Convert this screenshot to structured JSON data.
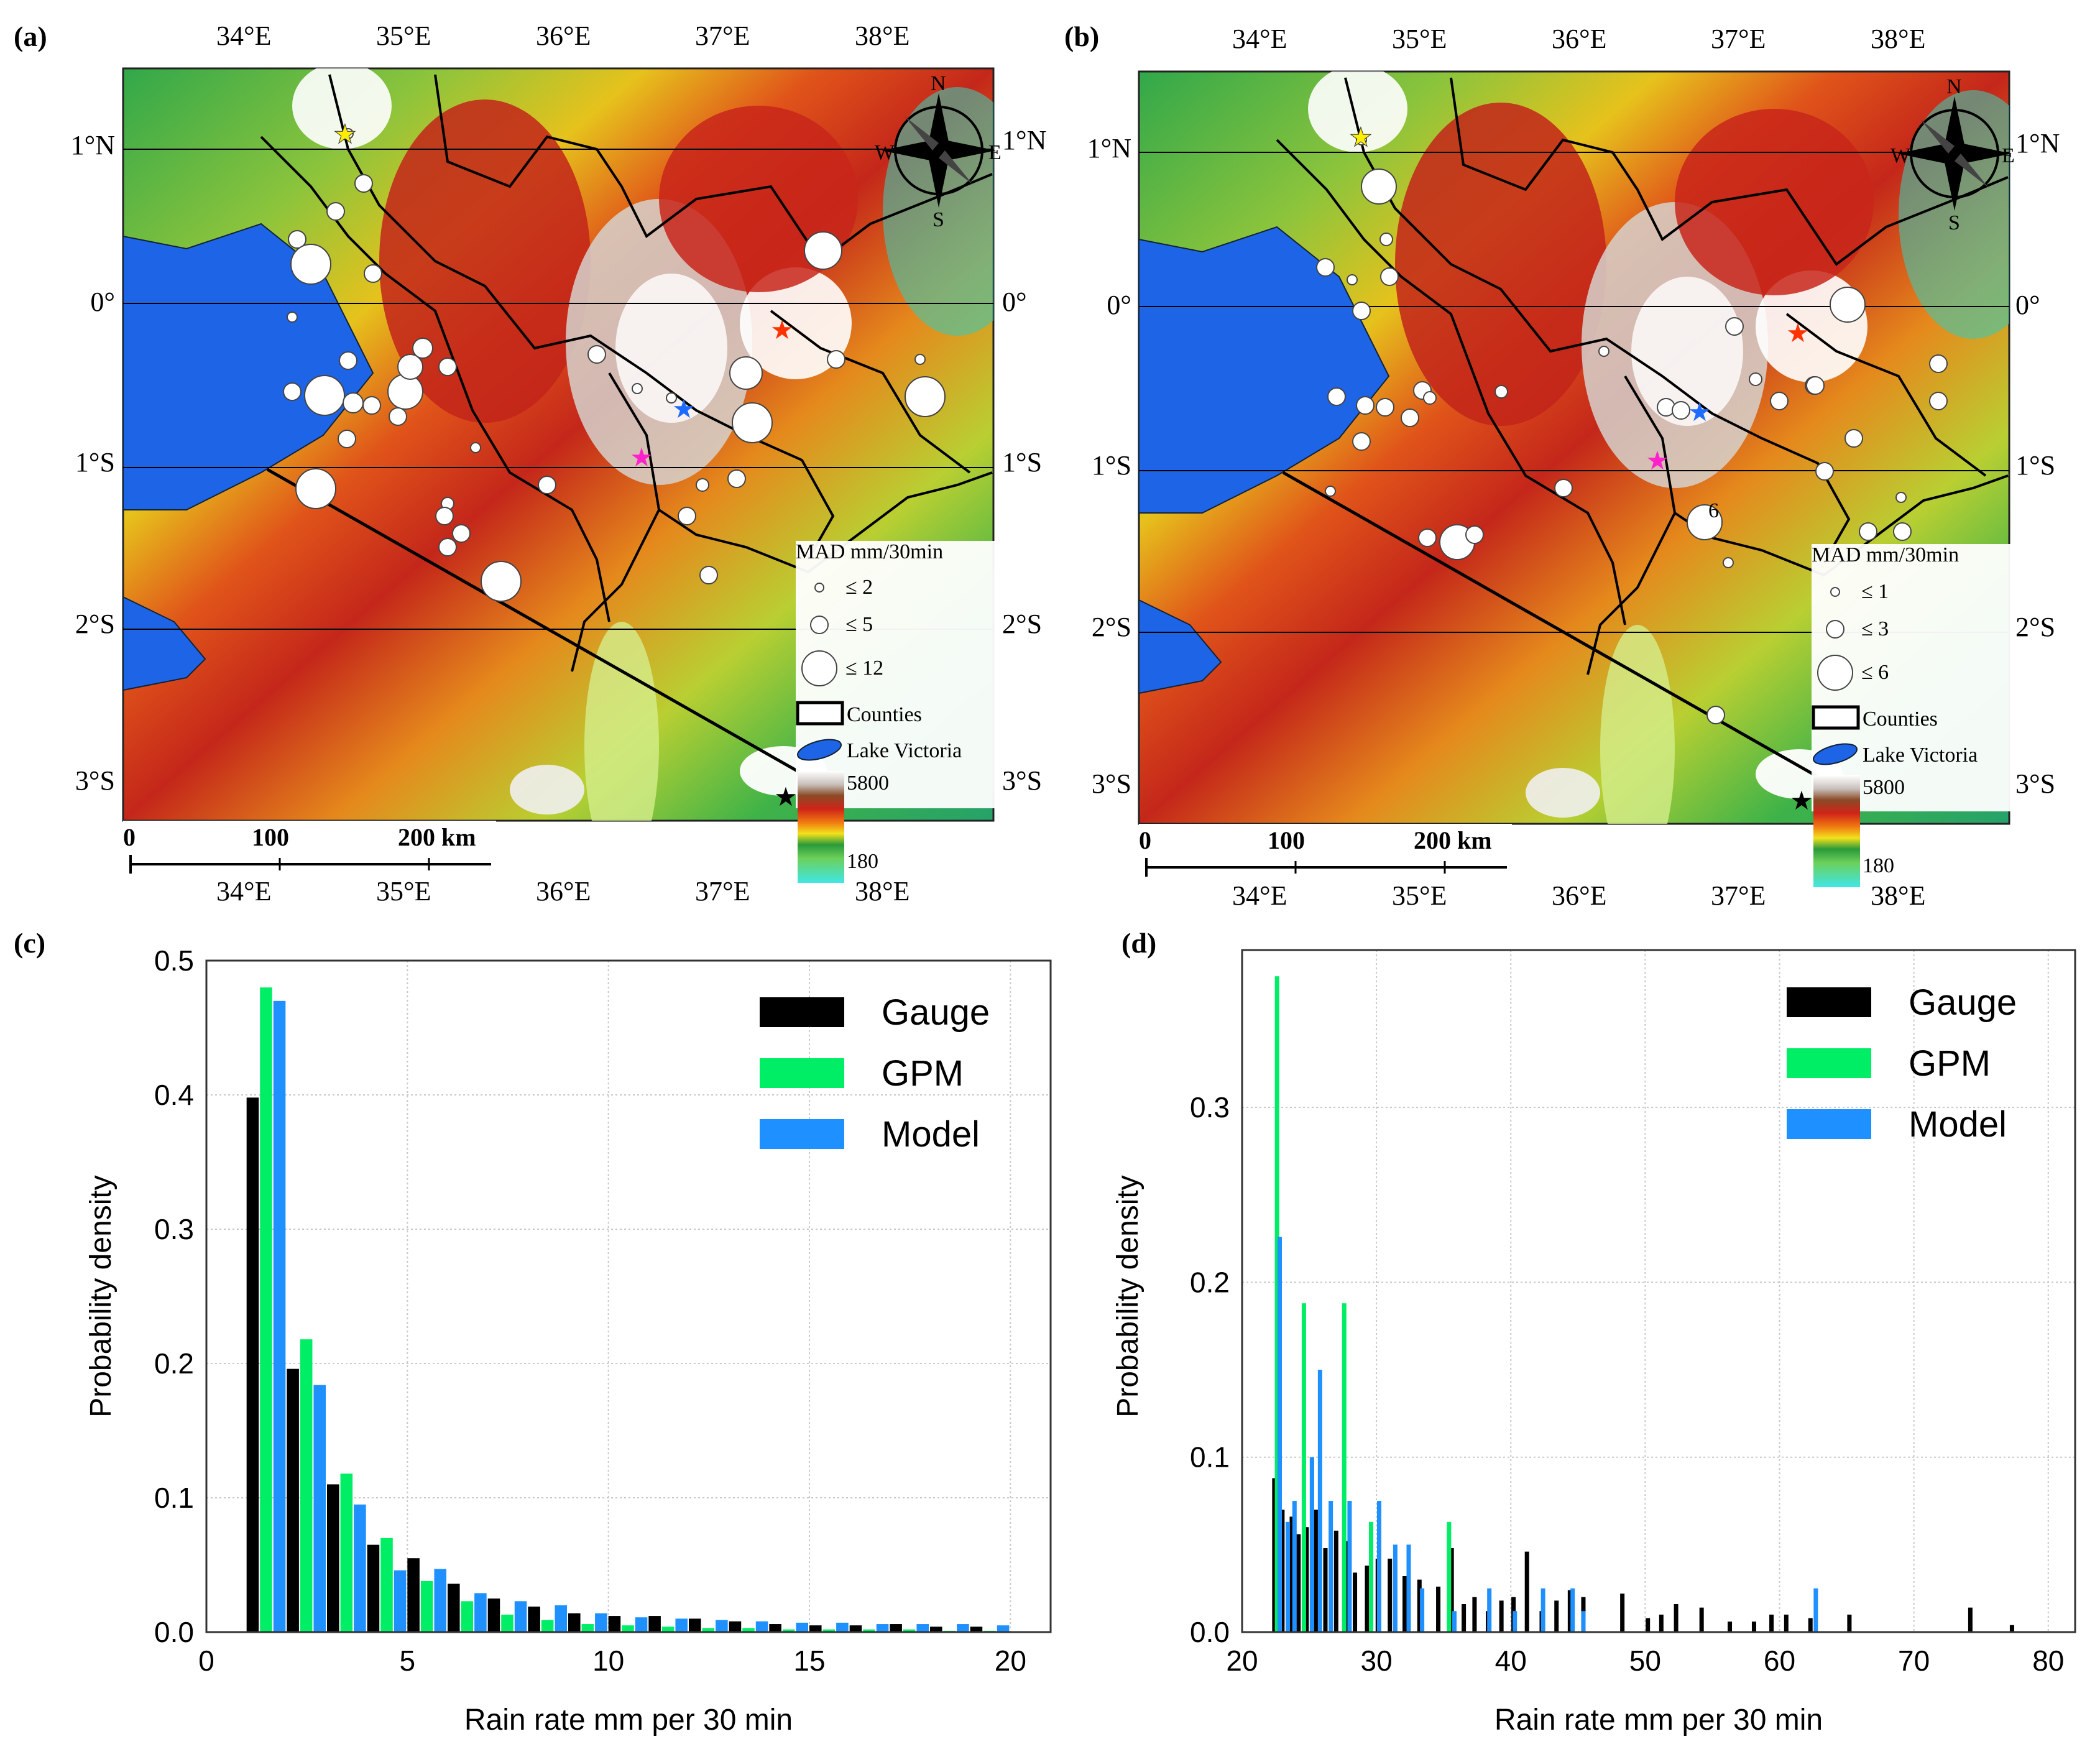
{
  "colors": {
    "gauge": "#000000",
    "gpm": "#00ee66",
    "model": "#1e90ff",
    "lake": "#1e64e6",
    "star_yellow": "#ffee00",
    "star_red": "#ff3300",
    "star_blue": "#1e6cff",
    "star_magenta": "#ff22cc",
    "star_black": "#000000"
  },
  "panels": {
    "a": {
      "letter": "(a)"
    },
    "b": {
      "letter": "(b)"
    },
    "c": {
      "letter": "(c)"
    },
    "d": {
      "letter": "(d)"
    }
  },
  "maps": {
    "lon_labels": [
      "34°E",
      "35°E",
      "36°E",
      "37°E",
      "38°E"
    ],
    "lat_labels_left": [
      "1°N",
      "0°",
      "1°S",
      "2°S",
      "3°S"
    ],
    "lat_labels_right": [
      "1°N",
      "0°",
      "1°S",
      "2°S",
      "3°S"
    ],
    "compass": {
      "n": "N",
      "s": "S",
      "e": "E",
      "w": "W"
    },
    "scale_bar": {
      "labels": [
        "0",
        "100",
        "200 km"
      ]
    },
    "legend_common": {
      "counties": "Counties",
      "lake": "Lake Victoria",
      "elev_max": "5800",
      "elev_min": "180"
    },
    "legend_a": {
      "title": "MAD mm/30min",
      "sizes": [
        "≤ 2",
        "≤ 5",
        "≤ 12"
      ]
    },
    "legend_b": {
      "title": "MAD mm/30min",
      "sizes": [
        "≤ 1",
        "≤ 3",
        "≤ 6"
      ]
    },
    "annotation_b": "6"
  },
  "chart_data": [
    {
      "panel": "(c)",
      "type": "bar",
      "xlabel": "Rain rate mm per 30 min",
      "ylabel": "Probability density",
      "xlim": [
        0,
        21
      ],
      "ylim": [
        0,
        0.5
      ],
      "xticks": [
        0,
        5,
        10,
        15,
        20
      ],
      "yticks": [
        0.0,
        0.1,
        0.2,
        0.3,
        0.4,
        0.5
      ],
      "grid": true,
      "legend_position": "top-right",
      "bin_starts": [
        1,
        2,
        3,
        4,
        5,
        6,
        7,
        8,
        9,
        10,
        11,
        12,
        13,
        14,
        15,
        16,
        17,
        18,
        19
      ],
      "series": [
        {
          "name": "Gauge",
          "color": "#000000",
          "values": [
            0.398,
            0.196,
            0.11,
            0.065,
            0.055,
            0.036,
            0.025,
            0.019,
            0.014,
            0.012,
            0.012,
            0.01,
            0.008,
            0.006,
            0.005,
            0.005,
            0.006,
            0.004,
            0.004
          ]
        },
        {
          "name": "GPM",
          "color": "#00ee66",
          "values": [
            0.48,
            0.218,
            0.118,
            0.07,
            0.038,
            0.023,
            0.013,
            0.009,
            0.006,
            0.005,
            0.004,
            0.003,
            0.003,
            0.002,
            0.002,
            0.002,
            0.002,
            0.001,
            0.001
          ]
        },
        {
          "name": "Model",
          "color": "#1e90ff",
          "values": [
            0.47,
            0.184,
            0.095,
            0.046,
            0.047,
            0.029,
            0.023,
            0.02,
            0.014,
            0.011,
            0.01,
            0.009,
            0.008,
            0.007,
            0.007,
            0.006,
            0.006,
            0.006,
            0.005
          ]
        }
      ]
    },
    {
      "panel": "(d)",
      "type": "bar",
      "xlabel": "Rain rate mm per 30 min",
      "ylabel": "Probability density",
      "xlim": [
        20,
        82
      ],
      "ylim": [
        0,
        0.39
      ],
      "xticks": [
        20,
        30,
        40,
        50,
        60,
        70,
        80
      ],
      "yticks": [
        0.0,
        0.1,
        0.2,
        0.3
      ],
      "grid": true,
      "legend_position": "top-right",
      "series": [
        {
          "name": "Gauge",
          "color": "#000000",
          "points": [
            [
              22.4,
              0.088
            ],
            [
              23.0,
              0.07
            ],
            [
              23.7,
              0.066
            ],
            [
              24.2,
              0.056
            ],
            [
              24.8,
              0.06
            ],
            [
              25.5,
              0.07
            ],
            [
              26.2,
              0.048
            ],
            [
              27.0,
              0.058
            ],
            [
              27.8,
              0.052
            ],
            [
              28.4,
              0.034
            ],
            [
              29.3,
              0.038
            ],
            [
              30.1,
              0.042
            ],
            [
              31.0,
              0.042
            ],
            [
              32.1,
              0.032
            ],
            [
              33.2,
              0.03
            ],
            [
              34.6,
              0.026
            ],
            [
              35.6,
              0.048
            ],
            [
              36.5,
              0.016
            ],
            [
              37.3,
              0.02
            ],
            [
              38.3,
              0.012
            ],
            [
              39.3,
              0.018
            ],
            [
              40.2,
              0.02
            ],
            [
              41.2,
              0.046
            ],
            [
              42.3,
              0.012
            ],
            [
              43.4,
              0.018
            ],
            [
              44.4,
              0.024
            ],
            [
              45.4,
              0.02
            ],
            [
              48.3,
              0.022
            ],
            [
              50.2,
              0.008
            ],
            [
              51.2,
              0.01
            ],
            [
              52.3,
              0.016
            ],
            [
              54.2,
              0.014
            ],
            [
              56.3,
              0.006
            ],
            [
              58.1,
              0.006
            ],
            [
              59.4,
              0.01
            ],
            [
              60.5,
              0.01
            ],
            [
              62.3,
              0.008
            ],
            [
              65.2,
              0.01
            ],
            [
              74.2,
              0.014
            ],
            [
              77.3,
              0.004
            ]
          ]
        },
        {
          "name": "GPM",
          "color": "#00ee66",
          "points": [
            [
              22.6,
              0.375
            ],
            [
              24.6,
              0.188
            ],
            [
              25.2,
              0.1
            ],
            [
              27.6,
              0.188
            ],
            [
              29.6,
              0.063
            ],
            [
              35.4,
              0.063
            ]
          ]
        },
        {
          "name": "Model",
          "color": "#1e90ff",
          "points": [
            [
              22.8,
              0.226
            ],
            [
              23.4,
              0.063
            ],
            [
              23.9,
              0.075
            ],
            [
              25.2,
              0.1
            ],
            [
              25.8,
              0.15
            ],
            [
              26.6,
              0.075
            ],
            [
              28.0,
              0.075
            ],
            [
              30.2,
              0.075
            ],
            [
              31.4,
              0.05
            ],
            [
              32.4,
              0.05
            ],
            [
              33.4,
              0.025
            ],
            [
              35.8,
              0.012
            ],
            [
              38.4,
              0.025
            ],
            [
              40.3,
              0.012
            ],
            [
              42.4,
              0.025
            ],
            [
              44.6,
              0.025
            ],
            [
              45.4,
              0.012
            ],
            [
              62.7,
              0.025
            ]
          ]
        }
      ]
    }
  ]
}
